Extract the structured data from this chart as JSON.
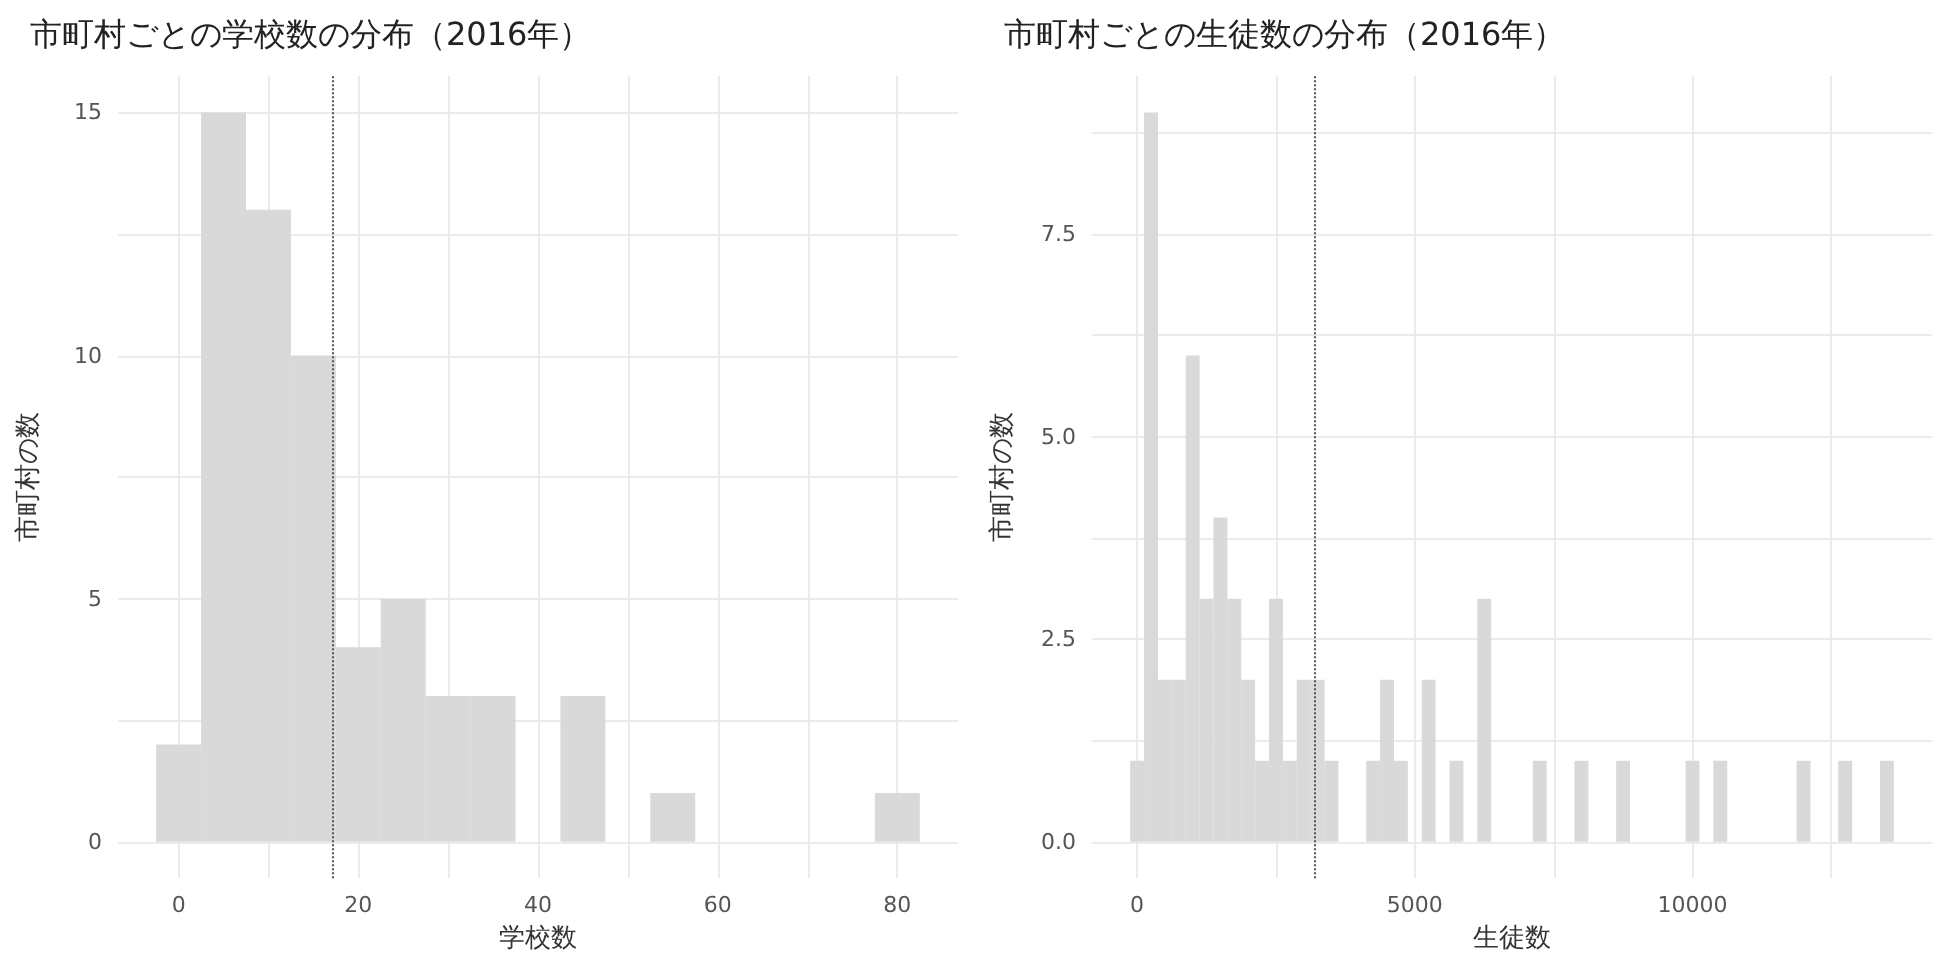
{
  "chart_data": [
    {
      "type": "histogram",
      "title": "市町村ごとの学校数の分布（2016年）",
      "xlabel": "学校数",
      "ylabel": "市町村の数",
      "color": "#d9d9d9",
      "bins": [
        -2.5,
        2.5,
        7.5,
        12.5,
        17.5,
        22.5,
        27.5,
        32.5,
        37.5,
        42.5,
        47.5,
        52.5,
        57.5,
        62.5,
        67.5,
        72.5,
        77.5,
        82.5
      ],
      "values": [
        2,
        15,
        13,
        10,
        4,
        5,
        3,
        3,
        0,
        3,
        0,
        1,
        0,
        0,
        0,
        0,
        1
      ],
      "xlim": [
        -6.75,
        86.75
      ],
      "xticks": [
        0,
        {
          "value": 10,
          "label": null
        },
        20,
        {
          "value": 30,
          "label": null
        },
        40,
        {
          "value": 50,
          "label": null
        },
        60,
        {
          "value": 70,
          "label": null
        },
        80
      ],
      "ylim": [
        -0.75,
        15.75
      ],
      "yticks": [
        0,
        {
          "value": 2.5,
          "label": null
        },
        5,
        {
          "value": 7.5,
          "label": null
        },
        10,
        {
          "value": 12.5,
          "label": null
        },
        15
      ],
      "grid": true,
      "ref_lines": [
        {
          "axis": "x",
          "value": 17.1,
          "color": "#555555",
          "line_style": "dotted"
        }
      ]
    },
    {
      "type": "histogram",
      "title": "市町村ごとの生徒数の分布（2016年）",
      "xlabel": "生徒数",
      "ylabel": "市町村の数",
      "color": "#d9d9d9",
      "bins": [
        -125,
        125,
        375,
        625,
        875,
        1125,
        1375,
        1625,
        1875,
        2125,
        2375,
        2625,
        2875,
        3125,
        3375,
        3625,
        3875,
        4125,
        4375,
        4625,
        4875,
        5125,
        5375,
        5625,
        5875,
        6125,
        6375,
        6625,
        6875,
        7125,
        7375,
        7625,
        7875,
        8125,
        8375,
        8625,
        8875,
        9125,
        9375,
        9625,
        9875,
        10125,
        10375,
        10625,
        10875,
        11125,
        11375,
        11625,
        11875,
        12125,
        12375,
        12625,
        12875,
        13125,
        13375,
        13625
      ],
      "values": [
        1,
        9,
        2,
        2,
        6,
        3,
        4,
        3,
        2,
        1,
        3,
        1,
        2,
        2,
        1,
        0,
        0,
        1,
        2,
        1,
        0,
        2,
        0,
        1,
        0,
        3,
        0,
        0,
        0,
        1,
        0,
        0,
        1,
        0,
        0,
        1,
        0,
        0,
        0,
        0,
        1,
        0,
        1,
        0,
        0,
        0,
        0,
        0,
        1,
        0,
        0,
        1,
        0,
        0,
        1
      ],
      "xlim": [
        -812.5,
        14312.5
      ],
      "xticks": [
        0,
        {
          "value": 2500,
          "label": null
        },
        5000,
        {
          "value": 7500,
          "label": null
        },
        10000,
        {
          "value": 12500,
          "label": null
        }
      ],
      "ylim": [
        -0.45,
        9.45
      ],
      "yticks": [
        {
          "value": 0,
          "label": "0.0"
        },
        {
          "value": 1.25,
          "label": null
        },
        {
          "value": 2.5,
          "label": "2.5"
        },
        {
          "value": 3.75,
          "label": null
        },
        {
          "value": 5,
          "label": "5.0"
        },
        {
          "value": 6.25,
          "label": null
        },
        {
          "value": 7.5,
          "label": "7.5"
        },
        {
          "value": 8.75,
          "label": null
        }
      ],
      "grid": true,
      "ref_lines": [
        {
          "axis": "x",
          "value": 3200,
          "color": "#555555",
          "line_style": "dotted"
        }
      ]
    }
  ]
}
